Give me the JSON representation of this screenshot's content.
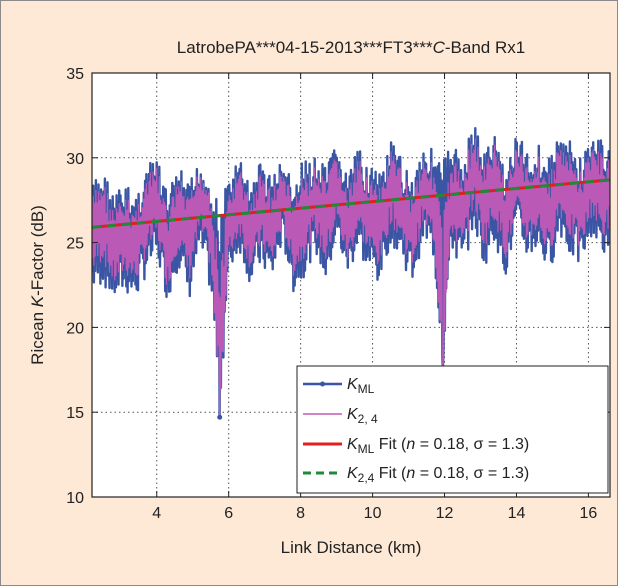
{
  "chart_data": {
    "type": "line",
    "title_prefix": "LatrobePA***04-15-2013***FT3***",
    "title_italic": "C",
    "title_suffix": "-Band Rx1",
    "xlabel": "Link Distance (km)",
    "ylabel_prefix": "Ricean ",
    "ylabel_italic": "K",
    "ylabel_suffix": "-Factor (dB)",
    "xlim": [
      2.2,
      16.6
    ],
    "ylim": [
      10,
      35
    ],
    "xticks": [
      4,
      6,
      8,
      10,
      12,
      14,
      16
    ],
    "yticks": [
      10,
      15,
      20,
      25,
      30,
      35
    ],
    "grid": true,
    "legend_position": "bottom-right",
    "series": [
      {
        "name": "K_ML",
        "color": "#3a55a4",
        "marker": "dot",
        "x": [
          2.2,
          2.5,
          2.8,
          3.1,
          3.4,
          3.7,
          4.0,
          4.3,
          4.6,
          4.9,
          5.2,
          5.5,
          5.75,
          6.0,
          6.3,
          6.6,
          6.9,
          7.2,
          7.5,
          7.8,
          8.1,
          8.4,
          8.7,
          9.0,
          9.3,
          9.6,
          9.9,
          10.2,
          10.5,
          10.8,
          11.1,
          11.4,
          11.7,
          11.95,
          12.2,
          12.5,
          12.8,
          13.1,
          13.4,
          13.7,
          14.0,
          14.3,
          14.6,
          14.9,
          15.2,
          15.5,
          15.8,
          16.1,
          16.4,
          16.6
        ],
        "y": [
          26.0,
          27.5,
          24.5,
          26.0,
          25.0,
          27.0,
          28.5,
          24.0,
          27.5,
          25.5,
          28.5,
          27.0,
          14.7,
          26.0,
          28.0,
          25.5,
          27.5,
          26.0,
          28.5,
          25.5,
          27.0,
          28.0,
          26.5,
          29.0,
          25.5,
          28.5,
          27.0,
          26.0,
          29.0,
          27.5,
          26.0,
          28.5,
          27.5,
          17.5,
          28.0,
          27.0,
          30.0,
          27.5,
          29.5,
          26.5,
          29.0,
          27.5,
          28.5,
          26.5,
          29.5,
          28.0,
          27.0,
          29.5,
          28.0,
          28.5
        ],
        "y_upper": [
          28.5,
          29.5,
          28.0,
          28.5,
          28.0,
          29.5,
          30.0,
          28.0,
          29.5,
          28.5,
          30.0,
          29.0,
          27.0,
          29.0,
          30.0,
          28.5,
          30.0,
          29.0,
          30.0,
          28.5,
          30.0,
          30.0,
          29.5,
          31.0,
          29.0,
          30.5,
          30.0,
          29.0,
          31.0,
          30.0,
          29.0,
          31.0,
          30.5,
          30.0,
          31.0,
          30.0,
          32.3,
          30.5,
          31.5,
          29.5,
          31.5,
          30.5,
          31.0,
          30.0,
          31.5,
          31.0,
          30.0,
          31.5,
          31.0,
          30.5
        ],
        "y_lower": [
          22.0,
          22.5,
          21.5,
          22.0,
          21.5,
          23.0,
          24.0,
          21.5,
          23.5,
          21.5,
          24.5,
          22.0,
          14.7,
          23.0,
          24.5,
          22.5,
          23.5,
          22.5,
          25.0,
          22.0,
          23.0,
          24.5,
          22.5,
          25.0,
          23.0,
          24.5,
          23.0,
          22.5,
          25.0,
          24.0,
          22.5,
          25.0,
          24.0,
          17.5,
          24.5,
          23.0,
          26.0,
          23.5,
          25.0,
          23.0,
          25.5,
          24.0,
          24.5,
          23.0,
          25.5,
          24.0,
          23.5,
          25.5,
          24.0,
          25.0
        ]
      },
      {
        "name": "K_2,4",
        "color": "#c25ab8"
      },
      {
        "name": "K_ML Fit (n = 0.18, σ = 1.3)",
        "color": "#e02020",
        "style": "solid",
        "x": [
          2.2,
          16.6
        ],
        "y": [
          25.9,
          28.7
        ]
      },
      {
        "name": "K_2,4 Fit (n = 0.18, σ = 1.3)",
        "color": "#1f8a3a",
        "style": "dashed",
        "x": [
          2.2,
          16.6
        ],
        "y": [
          25.9,
          28.7
        ]
      }
    ],
    "legend": [
      {
        "main": "K",
        "sub": "ML",
        "rest": ""
      },
      {
        "main": "K",
        "sub": "2, 4",
        "rest": ""
      },
      {
        "main": "K",
        "sub": "ML",
        "rest": " Fit (",
        "n": "n",
        "eq1": " = 0.18, σ = 1.3)"
      },
      {
        "main": "K",
        "sub": "2,4",
        "rest": " Fit (",
        "n": "n",
        "eq1": " = 0.18, σ = 1.3)"
      }
    ]
  }
}
